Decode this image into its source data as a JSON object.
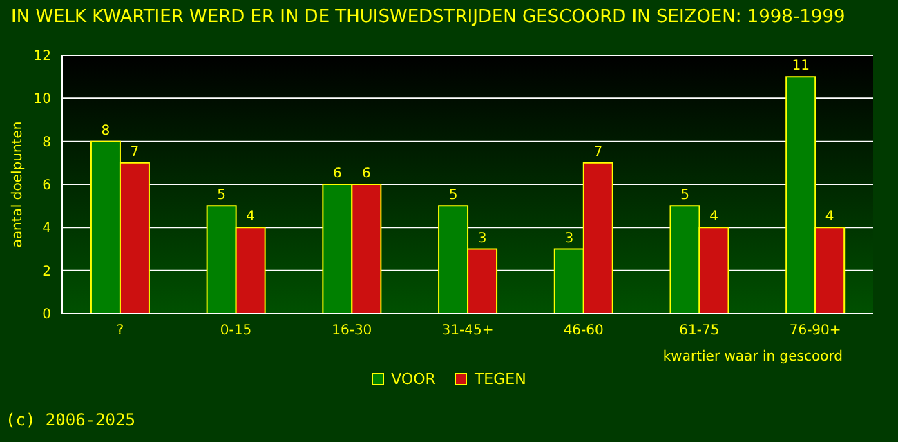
{
  "chart_data": {
    "type": "bar",
    "title": "IN WELK KWARTIER WERD ER IN DE THUISWEDSTRIJDEN GESCOORD IN SEIZOEN: 1998-1999",
    "xlabel": "kwartier waar in gescoord",
    "ylabel": "aantal doelpunten",
    "categories": [
      "?",
      "0-15",
      "16-30",
      "31-45+",
      "46-60",
      "61-75",
      "76-90+"
    ],
    "series": [
      {
        "name": "VOOR",
        "color": "#008000",
        "values": [
          8,
          5,
          6,
          5,
          3,
          5,
          11
        ]
      },
      {
        "name": "TEGEN",
        "color": "#cc1010",
        "values": [
          7,
          4,
          6,
          3,
          7,
          4,
          4
        ]
      }
    ],
    "ylim": [
      0,
      12
    ],
    "yticks": [
      0,
      2,
      4,
      6,
      8,
      10,
      12
    ],
    "grid": "y",
    "legend": "bottom",
    "data_labels": true,
    "annotations": [
      "(c) 2006-2025"
    ]
  }
}
